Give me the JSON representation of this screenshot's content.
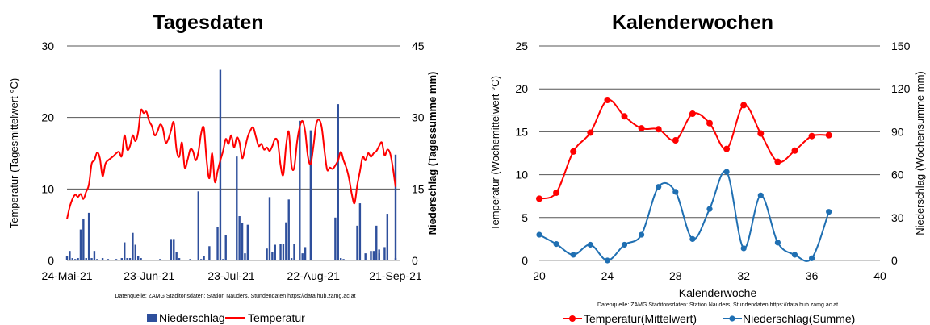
{
  "chart_data": [
    {
      "type": "bar+line",
      "title": "Tagesdaten",
      "ylabel": "Temperatur (Tagesmittelwert °C)",
      "y2label": "Niederschlag (Tagessumme mm)",
      "ylim": [
        0,
        30
      ],
      "y2lim": [
        0,
        45
      ],
      "yticks": [
        "0",
        "10",
        "20",
        "30"
      ],
      "y2ticks": [
        "0",
        "15",
        "30",
        "45"
      ],
      "xticks": [
        "24-Mai-21",
        "23-Jun-21",
        "23-Jul-21",
        "22-Aug-21",
        "21-Sep-21"
      ],
      "days": 121,
      "grid": true,
      "legend_position": "bottom",
      "source": "Datenquelle: ZAMG Staditonsdaten: Station Nauders, Stundendaten https://data.hub.zamg.ac.at",
      "series": [
        {
          "name": "Niederschlag",
          "type": "bar",
          "axis": "right",
          "color": "#2e4f9c",
          "values": [
            1,
            2,
            0.5,
            0.3,
            0.5,
            6.5,
            8.8,
            0.5,
            10,
            0.5,
            2,
            0.3,
            0,
            0.5,
            0,
            0.3,
            0,
            0,
            0.3,
            0,
            0.5,
            3.8,
            0.5,
            0.5,
            5.8,
            3.3,
            1,
            0.5,
            0,
            0,
            0,
            0,
            0,
            0,
            0.3,
            0,
            0,
            0,
            4.5,
            4.5,
            1.8,
            0.5,
            0,
            0,
            0,
            0.3,
            0,
            0,
            14.5,
            0.3,
            1,
            0,
            3,
            0,
            0,
            7,
            40,
            0.3,
            5.3,
            0,
            0,
            0,
            21.8,
            9.3,
            7.8,
            1.5,
            7.5,
            0,
            0,
            0,
            0,
            0,
            0,
            2.5,
            13.3,
            1.8,
            3.3,
            0,
            3.5,
            3.5,
            8,
            12.8,
            0.5,
            3.5,
            0,
            29.3,
            1.5,
            2.8,
            0,
            27.3,
            0,
            0,
            0,
            0,
            0,
            0,
            0,
            0,
            9,
            32.8,
            0.5,
            0.3,
            0,
            0,
            0,
            0,
            0,
            12,
            0,
            0,
            0,
            2,
            2,
            7.3,
            1.5,
            0,
            0,
            0,
            0,
            0,
            0.5
          ],
          "extra_bars": [
            {
              "day": 106,
              "value": 7.3
            },
            {
              "day": 109,
              "value": 1.5
            },
            {
              "day": 114,
              "value": 2.3
            },
            {
              "day": 116,
              "value": 2.8
            },
            {
              "day": 117,
              "value": 9.8
            },
            {
              "day": 120,
              "value": 22.2
            }
          ]
        },
        {
          "name": "Temperatur",
          "type": "line",
          "axis": "left",
          "color": "#ff0000",
          "values": [
            5.8,
            7.5,
            8.6,
            9.2,
            8.9,
            9.3,
            8.6,
            9.6,
            10.6,
            13.5,
            14,
            15.1,
            14.3,
            11.8,
            13.5,
            14,
            14.3,
            14.6,
            15,
            15.2,
            14.6,
            17.5,
            15.5,
            16,
            17.5,
            16.7,
            18,
            21,
            20.6,
            20.8,
            19.5,
            18.8,
            17.5,
            18,
            19,
            18.5,
            16.5,
            17,
            18.2,
            19.3,
            15.5,
            14.5,
            16.5,
            13,
            14,
            15.5,
            15.3,
            14,
            15.2,
            17.8,
            18.5,
            14,
            11.5,
            15,
            11,
            12.5,
            14,
            15.3,
            17,
            16.3,
            17.5,
            15.8,
            17.2,
            16.5,
            14.3,
            15.7,
            17.3,
            18.2,
            18.6,
            17.3,
            16,
            16.3,
            15.5,
            15.8,
            15.3,
            16,
            17,
            16.5,
            13.3,
            12,
            16,
            18,
            13.3,
            13,
            16.5,
            18.7,
            19.5,
            18,
            14.5,
            13.5,
            16,
            19,
            19.7,
            18.7,
            15.5,
            12.7,
            13,
            12.8,
            13.3,
            14,
            15.2,
            14,
            13,
            11.5,
            9.3,
            8,
            10.5,
            12.5,
            14.5,
            14,
            15,
            14.5,
            15,
            15.3,
            16,
            16.5,
            14.7,
            15.5,
            15,
            13,
            10.3
          ]
        }
      ]
    },
    {
      "type": "line",
      "title": "Kalenderwochen",
      "xlabel": "Kalenderwoche",
      "ylabel": "Temperatur (Wochemittelwert °C)",
      "y2label": "Niederschlag (Wochensumme mm)",
      "xlim": [
        20,
        40
      ],
      "xticks": [
        "20",
        "24",
        "28",
        "32",
        "36",
        "40"
      ],
      "ylim": [
        0,
        25
      ],
      "y2lim": [
        0,
        150
      ],
      "yticks": [
        "0",
        "5",
        "10",
        "15",
        "20",
        "25"
      ],
      "y2ticks": [
        "0",
        "30",
        "60",
        "90",
        "120",
        "150"
      ],
      "grid": true,
      "legend_position": "bottom",
      "source": "Datenquelle: ZAMG Staditonsdaten: Station Nauders, Stundendaten https://data.hub.zamg.ac.at",
      "x": [
        20,
        21,
        22,
        23,
        24,
        25,
        26,
        27,
        28,
        29,
        30,
        31,
        32,
        33,
        34,
        35,
        36,
        37
      ],
      "series": [
        {
          "name": "Temperatur(Mittelwert)",
          "axis": "left",
          "color": "#ff0000",
          "values": [
            7.2,
            7.9,
            12.7,
            14.9,
            18.7,
            16.8,
            15.4,
            15.3,
            14,
            17.1,
            16,
            13,
            18.1,
            14.8,
            11.5,
            12.8,
            14.5,
            14.6
          ]
        },
        {
          "name": "Niederschlag(Summe)",
          "axis": "right",
          "color": "#1f6fb2",
          "values": [
            18,
            11.5,
            4,
            11,
            0,
            11,
            18,
            51.5,
            48,
            15,
            36,
            62,
            8.5,
            45.5,
            12.5,
            4,
            1.5,
            34
          ]
        }
      ]
    }
  ]
}
